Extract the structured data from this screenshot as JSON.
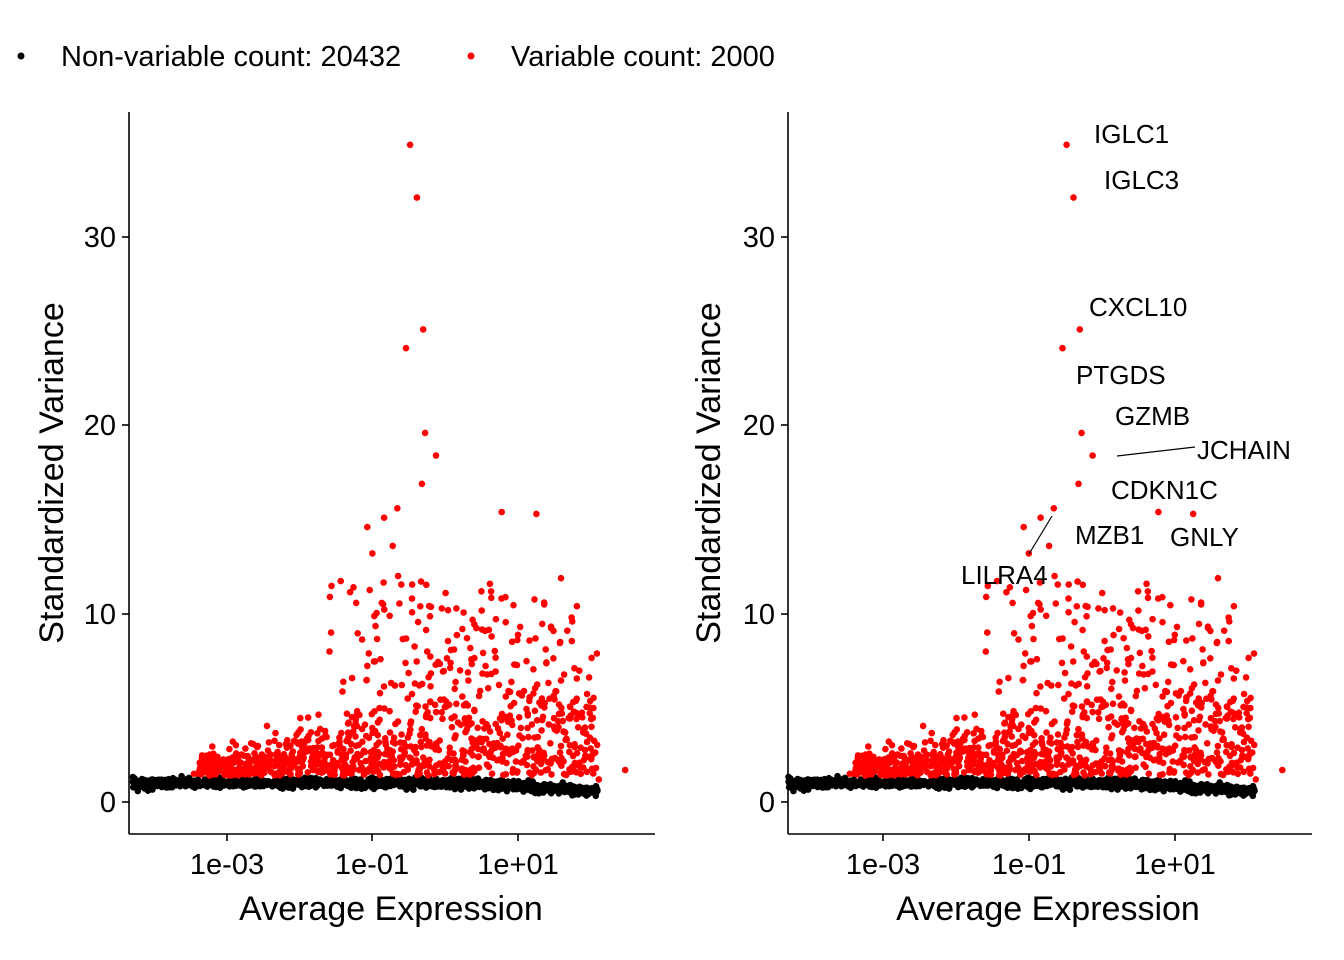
{
  "legend": {
    "items": [
      {
        "label": "Non-variable count: 20432",
        "color": "#000000"
      },
      {
        "label": "Variable count: 2000",
        "color": "#ff0000"
      }
    ]
  },
  "chart_data": [
    {
      "type": "scatter",
      "panel": "left",
      "xlabel": "Average Expression",
      "ylabel": "Standardized Variance",
      "x_scale": "log10",
      "x_ticks": [
        0.001,
        0.1,
        10
      ],
      "x_tick_labels": [
        "1e-03",
        "1e-01",
        "1e+01"
      ],
      "y_ticks": [
        0,
        10,
        20,
        30
      ],
      "y_tick_labels": [
        "0",
        "10",
        "20",
        "30"
      ],
      "ylim": [
        -1.7,
        36.5
      ],
      "xlim": [
        2e-05,
        2000
      ],
      "series": [
        {
          "name": "Non-variable count: 20432",
          "color": "#000000"
        },
        {
          "name": "Variable count: 2000",
          "color": "#ff0000",
          "highlight_points": [
            {
              "x": 0.33,
              "y": 34.9
            },
            {
              "x": 0.41,
              "y": 32.1
            },
            {
              "x": 0.5,
              "y": 25.1
            },
            {
              "x": 0.29,
              "y": 24.1
            },
            {
              "x": 0.53,
              "y": 19.6
            },
            {
              "x": 0.75,
              "y": 18.4
            },
            {
              "x": 0.48,
              "y": 16.9
            },
            {
              "x": 18.0,
              "y": 15.3
            },
            {
              "x": 6.0,
              "y": 15.4
            },
            {
              "x": 0.085,
              "y": 14.6
            },
            {
              "x": 0.1,
              "y": 13.2
            },
            {
              "x": 0.145,
              "y": 15.1
            },
            {
              "x": 0.22,
              "y": 15.6
            },
            {
              "x": 0.19,
              "y": 13.6
            },
            {
              "x": 65.0,
              "y": 10.4
            },
            {
              "x": 55.0,
              "y": 9.8
            },
            {
              "x": 0.35,
              "y": 10.8
            },
            {
              "x": 0.055,
              "y": 11.4
            },
            {
              "x": 60.0,
              "y": 7.1
            },
            {
              "x": 2.0,
              "y": 8.7
            }
          ]
        }
      ]
    },
    {
      "type": "scatter",
      "panel": "right",
      "xlabel": "Average Expression",
      "ylabel": "Standardized Variance",
      "x_scale": "log10",
      "x_ticks": [
        0.001,
        0.1,
        10
      ],
      "x_tick_labels": [
        "1e-03",
        "1e-01",
        "1e+01"
      ],
      "y_ticks": [
        0,
        10,
        20,
        30
      ],
      "y_tick_labels": [
        "0",
        "10",
        "20",
        "30"
      ],
      "ylim": [
        -1.7,
        36.5
      ],
      "xlim": [
        2e-05,
        2000
      ],
      "series": [
        {
          "name": "Non-variable count: 20432",
          "color": "#000000"
        },
        {
          "name": "Variable count: 2000",
          "color": "#ff0000",
          "highlight_points": [
            {
              "x": 0.33,
              "y": 34.9
            },
            {
              "x": 0.41,
              "y": 32.1
            },
            {
              "x": 0.5,
              "y": 25.1
            },
            {
              "x": 0.29,
              "y": 24.1
            },
            {
              "x": 0.53,
              "y": 19.6
            },
            {
              "x": 0.75,
              "y": 18.4
            },
            {
              "x": 0.48,
              "y": 16.9
            },
            {
              "x": 18.0,
              "y": 15.3
            },
            {
              "x": 6.0,
              "y": 15.4
            },
            {
              "x": 0.085,
              "y": 14.6
            },
            {
              "x": 0.1,
              "y": 13.2
            },
            {
              "x": 0.145,
              "y": 15.1
            },
            {
              "x": 0.22,
              "y": 15.6
            },
            {
              "x": 0.19,
              "y": 13.6
            },
            {
              "x": 65.0,
              "y": 10.4
            },
            {
              "x": 55.0,
              "y": 9.8
            },
            {
              "x": 0.35,
              "y": 10.8
            },
            {
              "x": 0.055,
              "y": 11.4
            },
            {
              "x": 60.0,
              "y": 7.1
            },
            {
              "x": 2.0,
              "y": 8.7
            }
          ]
        }
      ],
      "annotations": [
        {
          "text": "IGLC1",
          "x": 0.33,
          "y": 34.9
        },
        {
          "text": "IGLC3",
          "x": 0.41,
          "y": 32.1
        },
        {
          "text": "CXCL10",
          "x": 0.5,
          "y": 25.1
        },
        {
          "text": "PTGDS",
          "x": 0.29,
          "y": 24.1
        },
        {
          "text": "GZMB",
          "x": 0.53,
          "y": 19.6
        },
        {
          "text": "JCHAIN",
          "x": 0.75,
          "y": 18.4
        },
        {
          "text": "CDKN1C",
          "x": 0.48,
          "y": 16.9
        },
        {
          "text": "GNLY",
          "x": 18.0,
          "y": 15.3
        },
        {
          "text": "MZB1",
          "x": 0.19,
          "y": 13.6
        },
        {
          "text": "LILRA4",
          "x": 0.1,
          "y": 13.2
        }
      ]
    }
  ]
}
